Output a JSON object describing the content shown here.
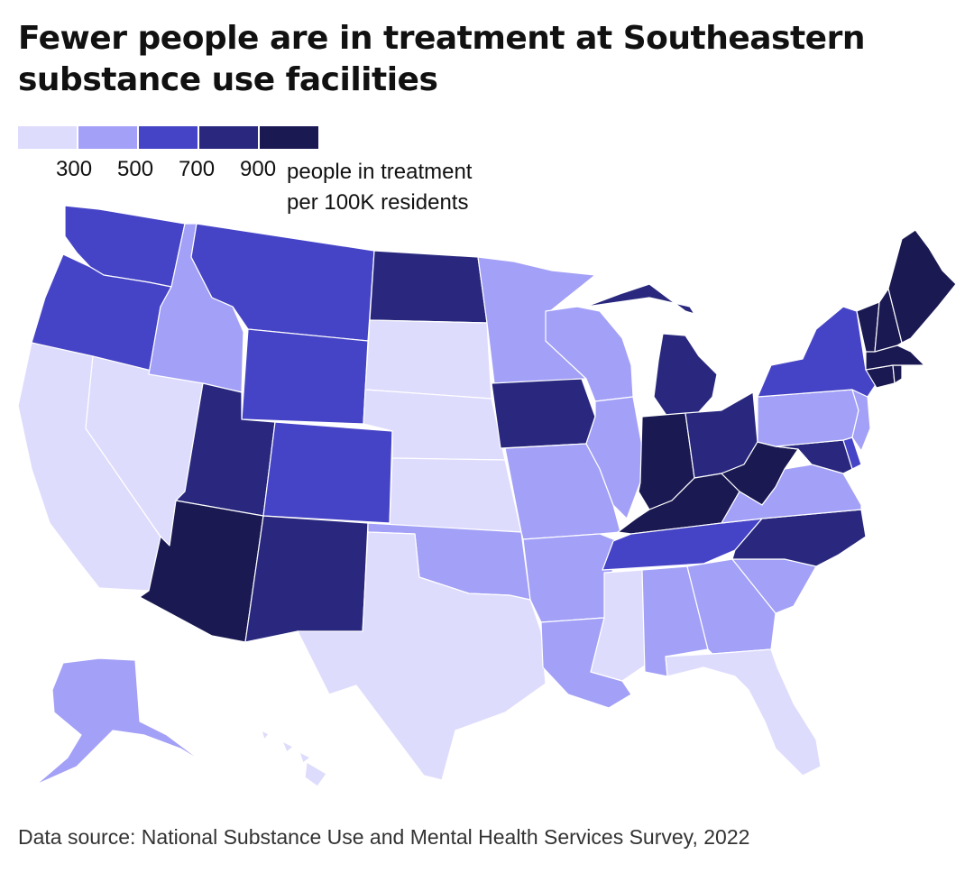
{
  "title": "Fewer people are in treatment at Southeastern substance use facilities",
  "legend": {
    "ticks": [
      "300",
      "500",
      "700",
      "900"
    ],
    "unit_label": "people in treatment\nper 100K residents",
    "colors": [
      "#dedcfc",
      "#a3a0f7",
      "#4644c6",
      "#29287e",
      "#1a1952"
    ]
  },
  "source": "Data source: National Substance Use and Mental Health Services Survey, 2022",
  "map_data": {
    "type": "choropleth",
    "region": "United States",
    "bins": [
      {
        "range": "below 300",
        "states": [
          "CA",
          "NV",
          "SD",
          "NE",
          "KS",
          "TX",
          "MS",
          "FL",
          "HI"
        ]
      },
      {
        "range": "300-500",
        "states": [
          "ID",
          "MN",
          "WI",
          "IL",
          "MO",
          "OK",
          "AR",
          "LA",
          "AL",
          "GA",
          "SC",
          "VA",
          "PA",
          "NJ",
          "AK"
        ]
      },
      {
        "range": "500-700",
        "states": [
          "WA",
          "OR",
          "MT",
          "WY",
          "CO",
          "NY",
          "TN",
          "DE"
        ]
      },
      {
        "range": "700-900",
        "states": [
          "ND",
          "UT",
          "NM",
          "IA",
          "MI",
          "OH",
          "NC",
          "MD"
        ]
      },
      {
        "range": "900 and above",
        "states": [
          "AZ",
          "IN",
          "KY",
          "WV",
          "ME",
          "VT",
          "NH",
          "MA",
          "CT",
          "RI"
        ]
      }
    ]
  }
}
